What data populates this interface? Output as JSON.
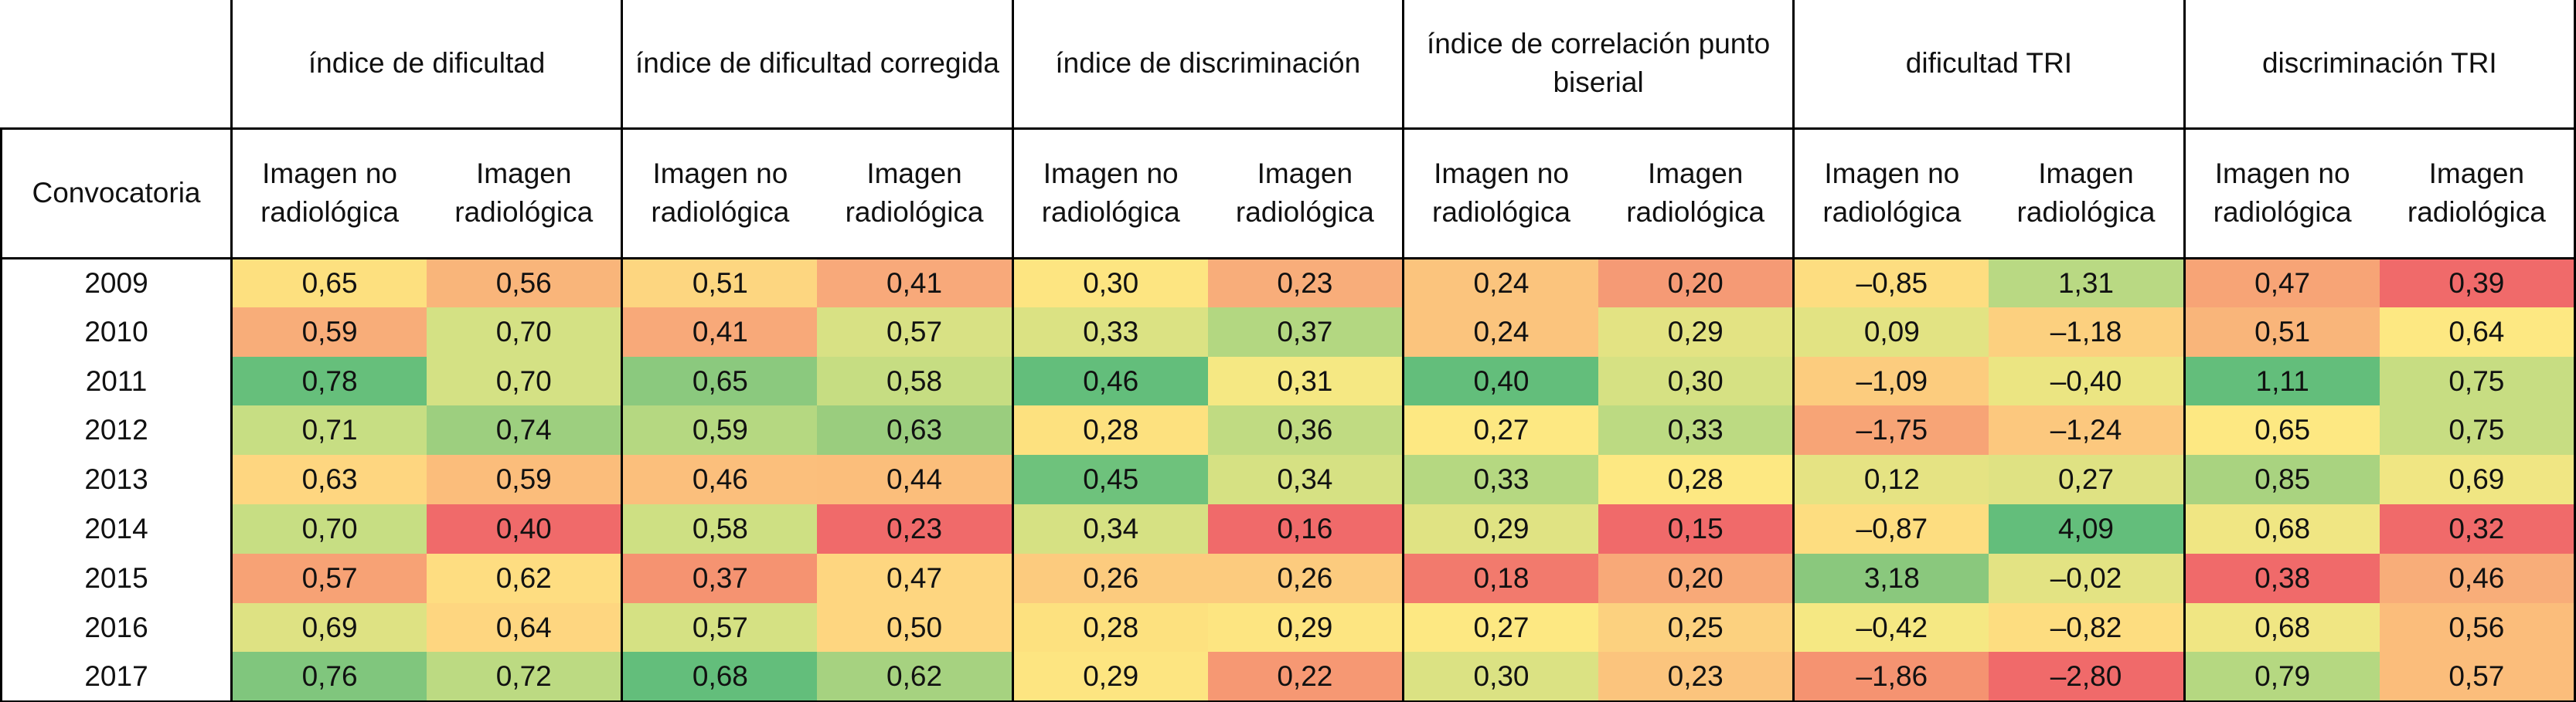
{
  "table": {
    "group_headers": [
      "índice de dificultad",
      "índice de dificultad corregida",
      "índice de discriminación",
      "índice de correlación punto biserial",
      "dificultad TRI",
      "discriminación TRI"
    ],
    "row_header_label": "Convocatoria",
    "sub_headers": [
      "Imagen no radiológica",
      "Imagen radiológica",
      "Imagen no radiológica",
      "Imagen radiológica",
      "Imagen no radiológica",
      "Imagen radiológica",
      "Imagen no radiológica",
      "Imagen radiológica",
      "Imagen no radiológica",
      "Imagen radiológica",
      "Imagen no radiológica",
      "Imagen radiológica"
    ],
    "rows": [
      {
        "year": "2009",
        "values": [
          "0,65",
          "0,56",
          "0,51",
          "0,41",
          "0,30",
          "0,23",
          "0,24",
          "0,20",
          "–0,85",
          "1,31",
          "0,47",
          "0,39"
        ]
      },
      {
        "year": "2010",
        "values": [
          "0,59",
          "0,70",
          "0,41",
          "0,57",
          "0,33",
          "0,37",
          "0,24",
          "0,29",
          "0,09",
          "–1,18",
          "0,51",
          "0,64"
        ]
      },
      {
        "year": "2011",
        "values": [
          "0,78",
          "0,70",
          "0,65",
          "0,58",
          "0,46",
          "0,31",
          "0,40",
          "0,30",
          "–1,09",
          "–0,40",
          "1,11",
          "0,75"
        ]
      },
      {
        "year": "2012",
        "values": [
          "0,71",
          "0,74",
          "0,59",
          "0,63",
          "0,28",
          "0,36",
          "0,27",
          "0,33",
          "–1,75",
          "–1,24",
          "0,65",
          "0,75"
        ]
      },
      {
        "year": "2013",
        "values": [
          "0,63",
          "0,59",
          "0,46",
          "0,44",
          "0,45",
          "0,34",
          "0,33",
          "0,28",
          "0,12",
          "0,27",
          "0,85",
          "0,69"
        ]
      },
      {
        "year": "2014",
        "values": [
          "0,70",
          "0,40",
          "0,58",
          "0,23",
          "0,34",
          "0,16",
          "0,29",
          "0,15",
          "–0,87",
          "4,09",
          "0,68",
          "0,32"
        ]
      },
      {
        "year": "2015",
        "values": [
          "0,57",
          "0,62",
          "0,37",
          "0,47",
          "0,26",
          "0,26",
          "0,18",
          "0,20",
          "3,18",
          "–0,02",
          "0,38",
          "0,46"
        ]
      },
      {
        "year": "2016",
        "values": [
          "0,69",
          "0,64",
          "0,57",
          "0,50",
          "0,28",
          "0,29",
          "0,27",
          "0,25",
          "–0,42",
          "–0,82",
          "0,68",
          "0,56"
        ]
      },
      {
        "year": "2017",
        "values": [
          "0,76",
          "0,72",
          "0,68",
          "0,62",
          "0,29",
          "0,22",
          "0,30",
          "0,23",
          "–1,86",
          "–2,80",
          "0,79",
          "0,57"
        ]
      }
    ]
  }
}
